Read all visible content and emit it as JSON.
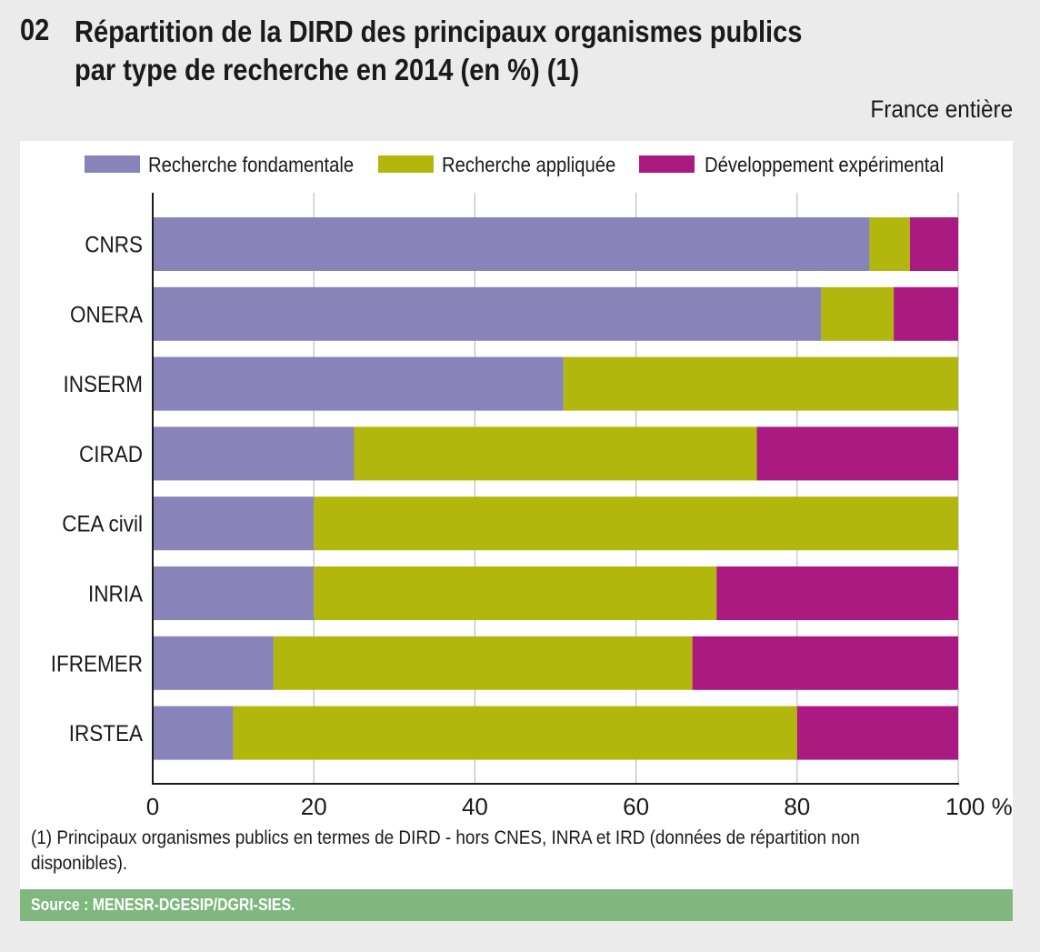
{
  "header": {
    "number": "02",
    "title_line1": "Répartition de la DIRD des principaux organismes publics",
    "title_line2": "par type de recherche en 2014 (en %) (1)",
    "scope": "France entière"
  },
  "footnote": "(1) Principaux organismes publics en termes de DIRD - hors CNES, INRA et IRD (données de répartition non disponibles).",
  "source": "Source : MENESR-DGESIP/DGRI-SIES.",
  "chart_data": {
    "type": "bar",
    "orientation": "horizontal",
    "stacked": true,
    "title": "Répartition de la DIRD des principaux organismes publics par type de recherche en 2014 (en %) (1)",
    "categories": [
      "CNRS",
      "ONERA",
      "INSERM",
      "CIRAD",
      "CEA civil",
      "INRIA",
      "IFREMER",
      "IRSTEA"
    ],
    "series": [
      {
        "name": "Recherche fondamentale",
        "color": "#8883b9",
        "values": [
          89,
          83,
          51,
          25,
          20,
          20,
          15,
          10
        ]
      },
      {
        "name": "Recherche appliquée",
        "color": "#b2b70d",
        "values": [
          5,
          9,
          49,
          50,
          80,
          50,
          52,
          70
        ]
      },
      {
        "name": "Développement expérimental",
        "color": "#ab1a81",
        "values": [
          6,
          8,
          0,
          25,
          0,
          30,
          33,
          20
        ]
      }
    ],
    "xlim": [
      0,
      100
    ],
    "xticks": [
      "0",
      "20",
      "40",
      "60",
      "80",
      "100 %"
    ],
    "xtick_values": [
      0,
      20,
      40,
      60,
      80,
      100
    ],
    "xlabel": "",
    "ylabel": "",
    "grid": "vertical",
    "legend": "top"
  }
}
